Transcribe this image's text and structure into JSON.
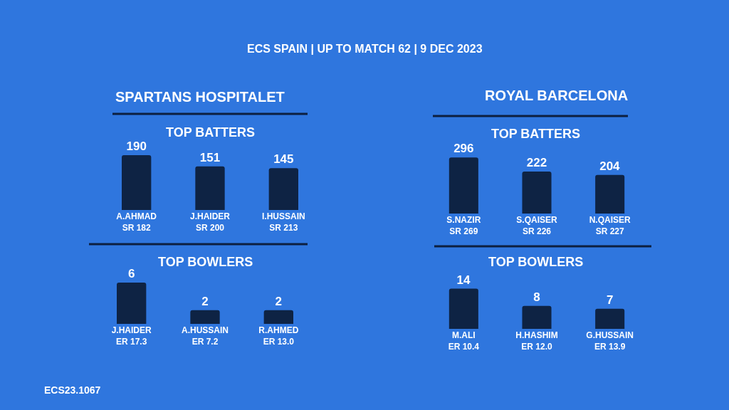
{
  "chart_data": [
    {
      "type": "other",
      "title": "ECS SPAIN | UP TO MATCH 62 | 9 DEC 2023",
      "annotations": [
        "ECS23.1067"
      ]
    },
    {
      "type": "bar",
      "title": "SPARTANS HOSPITALET",
      "subtitle": "TOP BATTERS",
      "categories": [
        "A.AHMAD\nSR 182",
        "J.HAIDER\nSR 200",
        "I.HUSSAIN\nSR 213"
      ],
      "values": [
        190,
        151,
        145
      ],
      "color": "#0e2344",
      "data_labels": true
    },
    {
      "type": "bar",
      "title": "ROYAL BARCELONA",
      "subtitle": "TOP BATTERS",
      "categories": [
        "S.NAZIR\nSR 269",
        "S.QAISER\nSR 226",
        "N.QAISER\nSR 227"
      ],
      "values": [
        296,
        222,
        204
      ],
      "color": "#0e2344",
      "data_labels": true
    },
    {
      "type": "bar",
      "title": "TOP BOWLERS",
      "categories": [
        "J.HAIDER\nER 17.3",
        "A.HUSSAIN\nER 7.2",
        "R.AHMED\nER 13.0"
      ],
      "values": [
        6,
        2,
        2
      ],
      "color": "#0e2344",
      "data_labels": true
    },
    {
      "type": "bar",
      "title": "TOP BOWLERS",
      "categories": [
        "M.ALI\nER 10.4",
        "H.HASHIM\nER 12.0",
        "G.HUSSAIN\nER 13.9"
      ],
      "values": [
        14,
        8,
        7
      ],
      "color": "#0e2344",
      "data_labels": true
    }
  ]
}
